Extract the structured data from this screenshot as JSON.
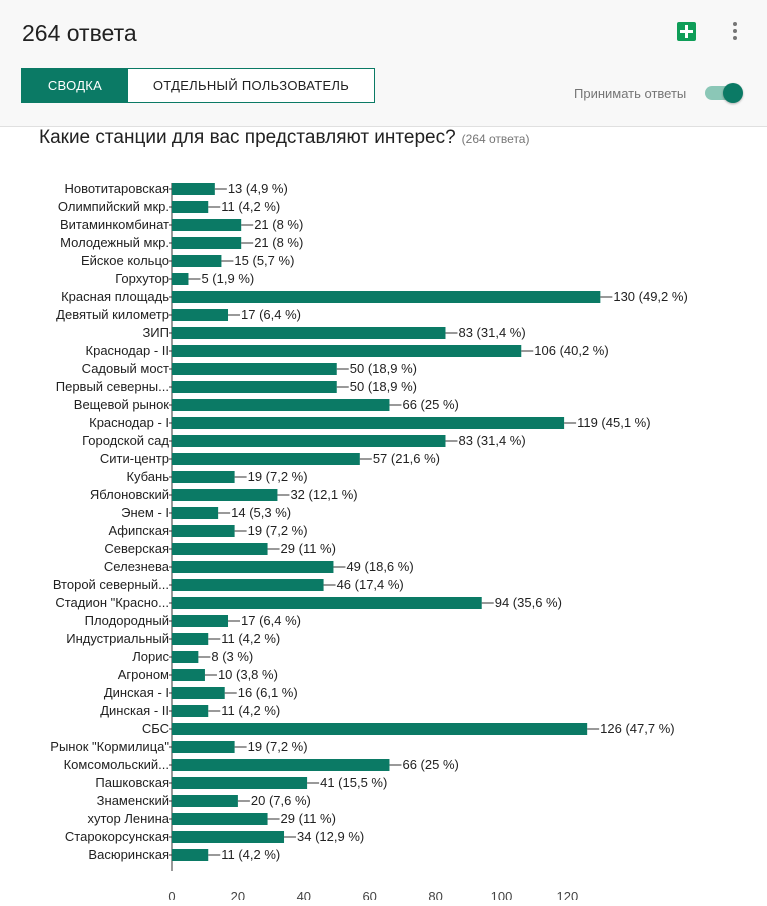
{
  "header": {
    "response_count": "264 ответа",
    "sheets_icon": "sheets-add-icon",
    "more_icon": "more-vert-icon",
    "tabs": [
      {
        "label": "СВОДКА",
        "active": true
      },
      {
        "label": "ОТДЕЛЬНЫЙ ПОЛЬЗОВАТЕЛЬ",
        "active": false
      }
    ],
    "accept_responses_label": "Принимать ответы",
    "accept_responses_on": true,
    "accent_color": "#0b7a65"
  },
  "question": {
    "title": "Какие станции для вас представляют интерес?",
    "count": "(264 ответа)"
  },
  "chart_data": {
    "type": "bar",
    "orientation": "horizontal",
    "bar_color": "#0b7a65",
    "xlim": [
      0,
      130
    ],
    "xticks": [
      0,
      20,
      40,
      60,
      80,
      100,
      120
    ],
    "grid": false,
    "categories": [
      "Новотитаровская",
      "Олимпийский мкр.",
      "Витаминкомбинат",
      "Молодежный мкр.",
      "Ейское кольцо",
      "Горхутор",
      "Красная площадь",
      "Девятый километр",
      "ЗИП",
      "Краснодар - II",
      "Садовый мост",
      "Первый северны...",
      "Вещевой рынок",
      "Краснодар - I",
      "Городской сад",
      "Сити-центр",
      "Кубань",
      "Яблоновский",
      "Энем - I",
      "Афипская",
      "Северская",
      "Селезнева",
      "Второй северный...",
      "Стадион \"Красно...",
      "Плодородный",
      "Индустриальный",
      "Лорис",
      "Агроном",
      "Динская - I",
      "Динская - II",
      "СБС",
      "Рынок \"Кормилица\"",
      "Комсомольский...",
      "Пашковская",
      "Знаменский",
      "хутор Ленина",
      "Старокорсунская",
      "Васюринская"
    ],
    "values": [
      13,
      11,
      21,
      21,
      15,
      5,
      130,
      17,
      83,
      106,
      50,
      50,
      66,
      119,
      83,
      57,
      19,
      32,
      14,
      19,
      29,
      49,
      46,
      94,
      17,
      11,
      8,
      10,
      16,
      11,
      126,
      19,
      66,
      41,
      20,
      29,
      34,
      11
    ],
    "labels": [
      "13 (4,9 %)",
      "11 (4,2 %)",
      "21 (8 %)",
      "21 (8 %)",
      "15 (5,7 %)",
      "5 (1,9 %)",
      "130 (49,2 %)",
      "17 (6,4 %)",
      "83 (31,4 %)",
      "106 (40,2 %)",
      "50 (18,9 %)",
      "50 (18,9 %)",
      "66 (25 %)",
      "119 (45,1 %)",
      "83 (31,4 %)",
      "57 (21,6 %)",
      "19 (7,2 %)",
      "32 (12,1 %)",
      "14 (5,3 %)",
      "19 (7,2 %)",
      "29 (11 %)",
      "49 (18,6 %)",
      "46 (17,4 %)",
      "94 (35,6 %)",
      "17 (6,4 %)",
      "11 (4,2 %)",
      "8 (3 %)",
      "10 (3,8 %)",
      "16 (6,1 %)",
      "11 (4,2 %)",
      "126 (47,7 %)",
      "19 (7,2 %)",
      "66 (25 %)",
      "41 (15,5 %)",
      "20 (7,6 %)",
      "29 (11 %)",
      "34 (12,9 %)",
      "11 (4,2 %)"
    ]
  }
}
